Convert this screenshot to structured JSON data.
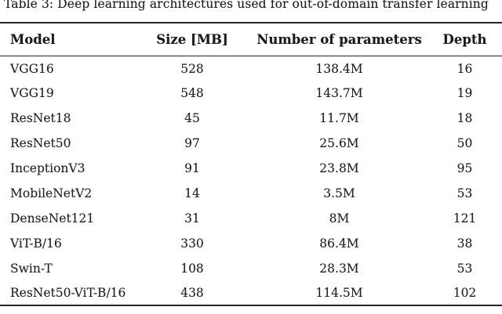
{
  "caption": "Table 3: Deep learning architectures used for out-of-domain transfer learning",
  "colors": {
    "background": "#ffffff",
    "text": "#1e1e1e",
    "rule": "#242424"
  },
  "table": {
    "columns": [
      "Model",
      "Size [MB]",
      "Number of parameters",
      "Depth"
    ],
    "rows": [
      {
        "model": "VGG16",
        "size_mb": "528",
        "parameters": "138.4M",
        "depth": "16"
      },
      {
        "model": "VGG19",
        "size_mb": "548",
        "parameters": "143.7M",
        "depth": "19"
      },
      {
        "model": "ResNet18",
        "size_mb": "45",
        "parameters": "11.7M",
        "depth": "18"
      },
      {
        "model": "ResNet50",
        "size_mb": "97",
        "parameters": "25.6M",
        "depth": "50"
      },
      {
        "model": "InceptionV3",
        "size_mb": "91",
        "parameters": "23.8M",
        "depth": "95"
      },
      {
        "model": "MobileNetV2",
        "size_mb": "14",
        "parameters": "3.5M",
        "depth": "53"
      },
      {
        "model": "DenseNet121",
        "size_mb": "31",
        "parameters": "8M",
        "depth": "121"
      },
      {
        "model": "ViT-B/16",
        "size_mb": "330",
        "parameters": "86.4M",
        "depth": "38"
      },
      {
        "model": "Swin-T",
        "size_mb": "108",
        "parameters": "28.3M",
        "depth": "53"
      },
      {
        "model": "ResNet50-ViT-B/16",
        "size_mb": "438",
        "parameters": "114.5M",
        "depth": "102"
      }
    ]
  }
}
